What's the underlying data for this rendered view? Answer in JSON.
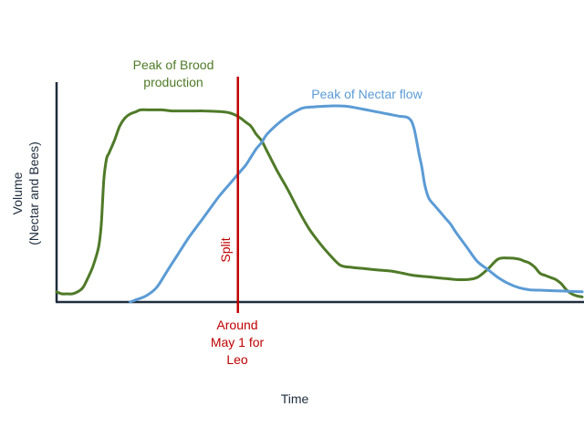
{
  "chart_data": {
    "type": "line",
    "title": "",
    "xlabel": "Time",
    "ylabel": [
      "Volume",
      "(Nectar and Bees)"
    ],
    "x_range": [
      0,
      100
    ],
    "y_range": [
      0,
      100
    ],
    "grid": false,
    "legend": "none",
    "series": [
      {
        "color": "#4f7a28",
        "x": [
          0,
          1,
          2,
          3,
          4,
          5,
          6,
          7,
          8,
          8.5,
          9,
          9.5,
          10,
          11,
          12,
          13,
          14,
          15,
          16,
          18,
          20,
          22,
          24,
          26,
          28,
          30,
          32,
          33,
          34,
          35,
          36,
          37,
          38,
          39,
          40,
          42,
          44,
          46,
          48,
          50,
          52,
          54,
          56,
          58,
          60,
          62,
          64,
          66,
          68,
          70,
          72,
          74,
          76,
          78,
          80,
          82,
          84,
          86,
          88,
          89,
          90,
          91,
          92,
          93,
          94,
          95,
          96,
          97,
          98,
          99,
          100
        ],
        "y": [
          5,
          4,
          4,
          4,
          5,
          7,
          12,
          18,
          27,
          38,
          60,
          70,
          73,
          79,
          86,
          90,
          92,
          93,
          94,
          94,
          94,
          93.5,
          93.5,
          93.5,
          93.5,
          93.3,
          93,
          92.5,
          91.5,
          90,
          88,
          86,
          82,
          79,
          74,
          64,
          55,
          45,
          36,
          29,
          23,
          18,
          17,
          16.5,
          16,
          15.5,
          15,
          14,
          13,
          12.5,
          12,
          11.5,
          11,
          11,
          12,
          16,
          21,
          21.5,
          21,
          20,
          19,
          17,
          14,
          13,
          12,
          11,
          9,
          6,
          4,
          3,
          2.5
        ]
      },
      {
        "color": "#5b9bd5",
        "x": [
          14,
          15,
          17,
          19,
          21,
          23,
          25,
          27,
          29,
          31,
          33,
          35,
          36,
          37,
          38,
          39,
          40,
          42,
          44,
          46,
          47,
          49,
          51,
          53,
          55,
          57,
          59,
          61,
          63,
          65,
          67,
          68,
          69,
          69.5,
          70,
          70.5,
          71,
          72,
          73,
          74,
          75,
          76,
          78,
          80,
          82,
          84,
          86,
          88,
          90,
          92,
          94,
          96,
          98,
          100
        ],
        "y": [
          0,
          1,
          3,
          7,
          15,
          23,
          31,
          38,
          45,
          52,
          58,
          64,
          67,
          71,
          75,
          78,
          82,
          87,
          91,
          94,
          95,
          95.5,
          95.8,
          96,
          95.8,
          95,
          94,
          93,
          92,
          91,
          90,
          85,
          72,
          66,
          58,
          53,
          50,
          47,
          44,
          41,
          38,
          34,
          27,
          20,
          16,
          12,
          9,
          7,
          6,
          5.8,
          5.6,
          5.4,
          5.2,
          5
        ]
      }
    ],
    "annotations": {
      "brood_peak": [
        "Peak of Brood",
        "production"
      ],
      "nectar_peak": "Peak of Nectar flow",
      "split_x": 34.5,
      "split_label": "Split",
      "split_caption": [
        "Around",
        "May 1 for",
        "Leo"
      ],
      "split_color": "#c00000"
    }
  }
}
